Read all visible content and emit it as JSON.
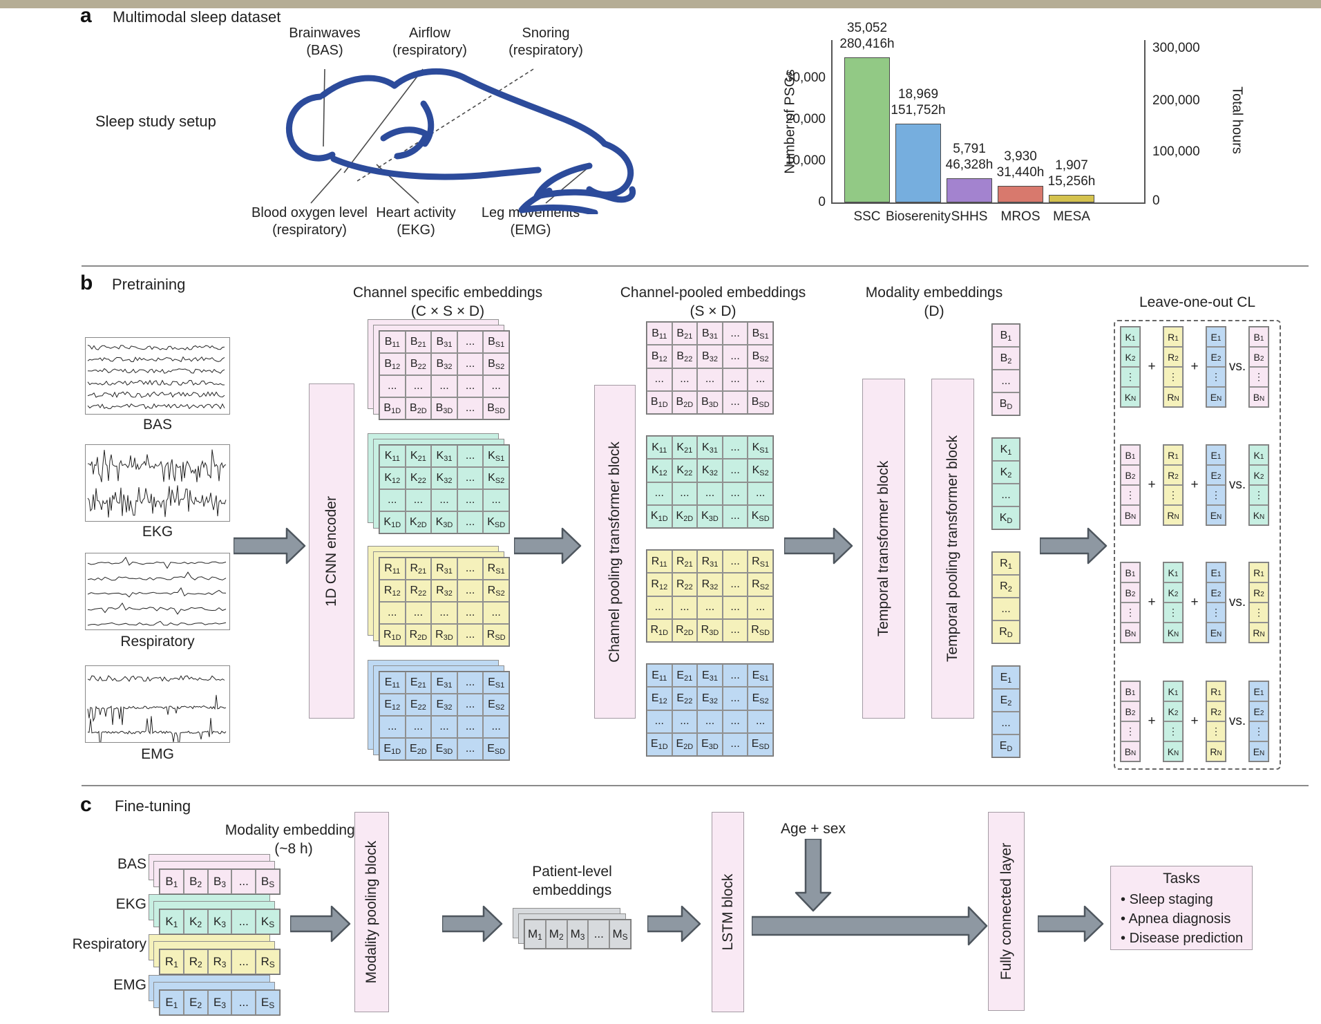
{
  "panel_a": {
    "tag": "a",
    "title": "Multimodal sleep dataset",
    "setup_label": "Sleep study setup",
    "sensors": [
      {
        "line1": "Brainwaves",
        "line2": "(BAS)"
      },
      {
        "line1": "Airflow",
        "line2": "(respiratory)"
      },
      {
        "line1": "Snoring",
        "line2": "(respiratory)"
      },
      {
        "line1": "Blood oxygen level",
        "line2": "(respiratory)"
      },
      {
        "line1": "Heart activity",
        "line2": "(EKG)"
      },
      {
        "line1": "Leg movements",
        "line2": "(EMG)"
      }
    ]
  },
  "chart_data": {
    "type": "bar",
    "categories": [
      "SSC",
      "Bioserenity",
      "SHHS",
      "MROS",
      "MESA"
    ],
    "psg_counts": [
      35052,
      18969,
      5791,
      3930,
      1907
    ],
    "total_hours": [
      280416,
      151752,
      46328,
      31440,
      15256
    ],
    "bar_labels": [
      [
        "35,052",
        "280,416h"
      ],
      [
        "18,969",
        "151,752h"
      ],
      [
        "5,791",
        "46,328h"
      ],
      [
        "3,930",
        "31,440h"
      ],
      [
        "1,907",
        "15,256h"
      ]
    ],
    "colors": [
      "#92c985",
      "#76aede",
      "#a383cf",
      "#d8796d",
      "#d4c24e"
    ],
    "left_axis": {
      "label": "Number of PSGs",
      "ticks": [
        "30,000",
        "20,000",
        "10,000",
        "0"
      ],
      "range": [
        0,
        38000
      ]
    },
    "right_axis": {
      "label": "Total hours",
      "ticks": [
        "300,000",
        "200,000",
        "100,000",
        "0"
      ],
      "range": [
        0,
        310000
      ]
    },
    "legend": "none",
    "grid": "off"
  },
  "panel_b": {
    "tag": "b",
    "title": "Pretraining",
    "headers": {
      "channel_specific": {
        "line1": "Channel specific embeddings",
        "line2": "(C × S × D)"
      },
      "channel_pooled": {
        "line1": "Channel-pooled embeddings",
        "line2": "(S × D)"
      },
      "modality": {
        "line1": "Modality embeddings",
        "line2": "(D)"
      }
    },
    "blocks": {
      "cnn": "1D CNN encoder",
      "channel_pool": "Channel pooling transformer block",
      "temporal": "Temporal transformer block",
      "temporal_pool": "Temporal pooling transformer block"
    },
    "signals": [
      "BAS",
      "EKG",
      "Respiratory",
      "EMG"
    ],
    "cl": {
      "title": "Leave-one-out CL",
      "ops": [
        "+",
        "+",
        "vs."
      ],
      "groups": [
        [
          "K",
          "R",
          "E",
          "B"
        ],
        [
          "B",
          "R",
          "E",
          "K"
        ],
        [
          "B",
          "K",
          "E",
          "R"
        ],
        [
          "B",
          "K",
          "R",
          "E"
        ]
      ]
    }
  },
  "panel_c": {
    "tag": "c",
    "title": "Fine-tuning",
    "header": {
      "line1": "Modality embeddings",
      "line2": "(~8 h)"
    },
    "rows": [
      "BAS",
      "EKG",
      "Respiratory",
      "EMG"
    ],
    "blocks": {
      "modality_pool": "Modality pooling block",
      "lstm": "LSTM block",
      "fc": "Fully connected layer"
    },
    "age_sex": "Age + sex",
    "patient": {
      "line1": "Patient-level",
      "line2": "embeddings"
    },
    "tasks": {
      "title": "Tasks",
      "items": [
        "Sleep staging",
        "Apnea diagnosis",
        "Disease prediction"
      ]
    }
  },
  "cells": {
    "grid": {
      "B": [
        {
          "t": "B",
          "s": "11"
        },
        {
          "t": "B",
          "s": "21"
        },
        {
          "t": "B",
          "s": "31"
        },
        {
          "t": "...",
          "s": ""
        },
        {
          "t": "B",
          "s": "S1"
        },
        {
          "t": "B",
          "s": "12"
        },
        {
          "t": "B",
          "s": "22"
        },
        {
          "t": "B",
          "s": "32"
        },
        {
          "t": "...",
          "s": ""
        },
        {
          "t": "B",
          "s": "S2"
        },
        {
          "t": "...",
          "s": ""
        },
        {
          "t": "...",
          "s": ""
        },
        {
          "t": "...",
          "s": ""
        },
        {
          "t": "...",
          "s": ""
        },
        {
          "t": "...",
          "s": ""
        },
        {
          "t": "B",
          "s": "1D"
        },
        {
          "t": "B",
          "s": "2D"
        },
        {
          "t": "B",
          "s": "3D"
        },
        {
          "t": "...",
          "s": ""
        },
        {
          "t": "B",
          "s": "SD"
        }
      ],
      "K": [
        {
          "t": "K",
          "s": "11"
        },
        {
          "t": "K",
          "s": "21"
        },
        {
          "t": "K",
          "s": "31"
        },
        {
          "t": "...",
          "s": ""
        },
        {
          "t": "K",
          "s": "S1"
        },
        {
          "t": "K",
          "s": "12"
        },
        {
          "t": "K",
          "s": "22"
        },
        {
          "t": "K",
          "s": "32"
        },
        {
          "t": "...",
          "s": ""
        },
        {
          "t": "K",
          "s": "S2"
        },
        {
          "t": "...",
          "s": ""
        },
        {
          "t": "...",
          "s": ""
        },
        {
          "t": "...",
          "s": ""
        },
        {
          "t": "...",
          "s": ""
        },
        {
          "t": "...",
          "s": ""
        },
        {
          "t": "K",
          "s": "1D"
        },
        {
          "t": "K",
          "s": "2D"
        },
        {
          "t": "K",
          "s": "3D"
        },
        {
          "t": "...",
          "s": ""
        },
        {
          "t": "K",
          "s": "SD"
        }
      ],
      "R": [
        {
          "t": "R",
          "s": "11"
        },
        {
          "t": "R",
          "s": "21"
        },
        {
          "t": "R",
          "s": "31"
        },
        {
          "t": "...",
          "s": ""
        },
        {
          "t": "R",
          "s": "S1"
        },
        {
          "t": "R",
          "s": "12"
        },
        {
          "t": "R",
          "s": "22"
        },
        {
          "t": "R",
          "s": "32"
        },
        {
          "t": "...",
          "s": ""
        },
        {
          "t": "R",
          "s": "S2"
        },
        {
          "t": "...",
          "s": ""
        },
        {
          "t": "...",
          "s": ""
        },
        {
          "t": "...",
          "s": ""
        },
        {
          "t": "...",
          "s": ""
        },
        {
          "t": "...",
          "s": ""
        },
        {
          "t": "R",
          "s": "1D"
        },
        {
          "t": "R",
          "s": "2D"
        },
        {
          "t": "R",
          "s": "3D"
        },
        {
          "t": "...",
          "s": ""
        },
        {
          "t": "R",
          "s": "SD"
        }
      ],
      "E": [
        {
          "t": "E",
          "s": "11"
        },
        {
          "t": "E",
          "s": "21"
        },
        {
          "t": "E",
          "s": "31"
        },
        {
          "t": "...",
          "s": ""
        },
        {
          "t": "E",
          "s": "S1"
        },
        {
          "t": "E",
          "s": "12"
        },
        {
          "t": "E",
          "s": "22"
        },
        {
          "t": "E",
          "s": "32"
        },
        {
          "t": "...",
          "s": ""
        },
        {
          "t": "E",
          "s": "S2"
        },
        {
          "t": "...",
          "s": ""
        },
        {
          "t": "...",
          "s": ""
        },
        {
          "t": "...",
          "s": ""
        },
        {
          "t": "...",
          "s": ""
        },
        {
          "t": "...",
          "s": ""
        },
        {
          "t": "E",
          "s": "1D"
        },
        {
          "t": "E",
          "s": "2D"
        },
        {
          "t": "E",
          "s": "3D"
        },
        {
          "t": "...",
          "s": ""
        },
        {
          "t": "E",
          "s": "SD"
        }
      ]
    },
    "col_d": {
      "B": [
        {
          "t": "B",
          "s": "1"
        },
        {
          "t": "B",
          "s": "2"
        },
        {
          "t": "...",
          "s": ""
        },
        {
          "t": "B",
          "s": "D"
        }
      ],
      "K": [
        {
          "t": "K",
          "s": "1"
        },
        {
          "t": "K",
          "s": "2"
        },
        {
          "t": "...",
          "s": ""
        },
        {
          "t": "K",
          "s": "D"
        }
      ],
      "R": [
        {
          "t": "R",
          "s": "1"
        },
        {
          "t": "R",
          "s": "2"
        },
        {
          "t": "...",
          "s": ""
        },
        {
          "t": "R",
          "s": "D"
        }
      ],
      "E": [
        {
          "t": "E",
          "s": "1"
        },
        {
          "t": "E",
          "s": "2"
        },
        {
          "t": "...",
          "s": ""
        },
        {
          "t": "E",
          "s": "D"
        }
      ]
    },
    "col_n": {
      "B": [
        {
          "t": "B",
          "s": "1"
        },
        {
          "t": "B",
          "s": "2"
        },
        {
          "t": "⋮",
          "s": ""
        },
        {
          "t": "B",
          "s": "N"
        }
      ],
      "K": [
        {
          "t": "K",
          "s": "1"
        },
        {
          "t": "K",
          "s": "2"
        },
        {
          "t": "⋮",
          "s": ""
        },
        {
          "t": "K",
          "s": "N"
        }
      ],
      "R": [
        {
          "t": "R",
          "s": "1"
        },
        {
          "t": "R",
          "s": "2"
        },
        {
          "t": "⋮",
          "s": ""
        },
        {
          "t": "R",
          "s": "N"
        }
      ],
      "E": [
        {
          "t": "E",
          "s": "1"
        },
        {
          "t": "E",
          "s": "2"
        },
        {
          "t": "⋮",
          "s": ""
        },
        {
          "t": "E",
          "s": "N"
        }
      ]
    },
    "strip": {
      "B": [
        {
          "t": "B",
          "s": "1"
        },
        {
          "t": "B",
          "s": "2"
        },
        {
          "t": "B",
          "s": "3"
        },
        {
          "t": "...",
          "s": ""
        },
        {
          "t": "B",
          "s": "S"
        }
      ],
      "K": [
        {
          "t": "K",
          "s": "1"
        },
        {
          "t": "K",
          "s": "2"
        },
        {
          "t": "K",
          "s": "3"
        },
        {
          "t": "...",
          "s": ""
        },
        {
          "t": "K",
          "s": "S"
        }
      ],
      "R": [
        {
          "t": "R",
          "s": "1"
        },
        {
          "t": "R",
          "s": "2"
        },
        {
          "t": "R",
          "s": "3"
        },
        {
          "t": "...",
          "s": ""
        },
        {
          "t": "R",
          "s": "S"
        }
      ],
      "E": [
        {
          "t": "E",
          "s": "1"
        },
        {
          "t": "E",
          "s": "2"
        },
        {
          "t": "E",
          "s": "3"
        },
        {
          "t": "...",
          "s": ""
        },
        {
          "t": "E",
          "s": "S"
        }
      ],
      "M": [
        {
          "t": "M",
          "s": "1"
        },
        {
          "t": "M",
          "s": "2"
        },
        {
          "t": "M",
          "s": "3"
        },
        {
          "t": "...",
          "s": ""
        },
        {
          "t": "M",
          "s": "S"
        }
      ]
    }
  }
}
